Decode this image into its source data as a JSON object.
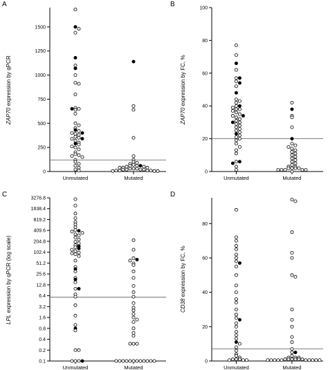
{
  "chart_data": [
    {
      "panel": "A",
      "type": "scatter",
      "ylabel_gene": "ZAP70",
      "ylabel_rest": " expression by qPCR",
      "categories": [
        "Unmutated",
        "Mutated"
      ],
      "ylim": [
        0,
        1700
      ],
      "yticks": [
        "0",
        "250",
        "500",
        "750",
        "1000",
        "1250",
        "1500"
      ],
      "ytick_values": [
        0,
        250,
        500,
        750,
        1000,
        1250,
        1500
      ],
      "cutoff": 120,
      "series": [
        {
          "category": "Unmutated",
          "open": [
            1680,
            1480,
            1440,
            1100,
            1000,
            920,
            910,
            800,
            660,
            650,
            640,
            600,
            500,
            480,
            450,
            420,
            400,
            390,
            380,
            360,
            350,
            340,
            320,
            300,
            280,
            260,
            250,
            230,
            200,
            180,
            170,
            160,
            150,
            120,
            100,
            80,
            60,
            40,
            20,
            10
          ],
          "filled": [
            1500,
            1180,
            1070,
            650,
            430,
            400,
            340,
            290
          ]
        },
        {
          "category": "Mutated",
          "open": [
            680,
            640,
            350,
            160,
            120,
            100,
            90,
            80,
            70,
            60,
            60,
            50,
            50,
            40,
            40,
            40,
            30,
            30,
            30,
            20,
            20,
            20,
            20,
            10,
            10,
            10,
            10,
            5,
            5,
            5
          ],
          "filled": [
            1140,
            60
          ]
        }
      ]
    },
    {
      "panel": "B",
      "type": "scatter",
      "ylabel_gene": "ZAP70",
      "ylabel_rest": " expression by FC, %",
      "categories": [
        "Unmutated",
        "Mutated"
      ],
      "ylim": [
        0,
        100
      ],
      "yticks": [
        "0",
        "20",
        "40",
        "60",
        "80",
        "100"
      ],
      "ytick_values": [
        0,
        20,
        40,
        60,
        80,
        100
      ],
      "cutoff": 20,
      "series": [
        {
          "category": "Unmutated",
          "open": [
            77,
            71,
            62,
            57,
            55,
            52,
            44,
            43,
            42,
            40,
            39,
            38,
            38,
            37,
            36,
            35,
            34,
            33,
            32,
            31,
            30,
            29,
            28,
            27,
            26,
            25,
            24,
            22,
            21,
            20,
            19,
            17,
            15,
            13,
            11,
            6,
            3,
            1
          ],
          "filled": [
            66,
            57,
            54,
            48,
            40,
            34,
            30,
            23,
            6,
            5
          ]
        },
        {
          "category": "Mutated",
          "open": [
            42,
            34,
            33,
            27,
            17,
            16,
            15,
            14,
            13,
            12,
            11,
            10,
            9,
            8,
            7,
            6,
            5,
            4,
            3,
            3,
            2,
            2,
            2,
            2,
            1,
            1,
            1,
            1,
            1,
            0
          ],
          "filled": [
            38,
            20
          ]
        }
      ]
    },
    {
      "panel": "C",
      "type": "scatter",
      "ylabel_gene": "LPL",
      "ylabel_rest": " expression by qPCR (log scale)",
      "yscale": "log2",
      "categories": [
        "Unmutated",
        "Mutated"
      ],
      "ylim": [
        0.1,
        3276.8
      ],
      "yticks": [
        "0.1",
        "0.2",
        "0.4",
        "0.8",
        "1.6",
        "3.2",
        "6.4",
        "12.8",
        "25.6",
        "51.2",
        "102.4",
        "204.8",
        "409.6",
        "819.2",
        "1638.4",
        "3276.8"
      ],
      "ytick_values": [
        0.1,
        0.2,
        0.4,
        0.8,
        1.6,
        3.2,
        6.4,
        12.8,
        25.6,
        51.2,
        102.4,
        204.8,
        409.6,
        819.2,
        1638.4,
        3276.8
      ],
      "cutoff": 5.8,
      "series": [
        {
          "category": "Unmutated",
          "open": [
            3000,
            2000,
            1200,
            900,
            700,
            600,
            500,
            420,
            380,
            350,
            320,
            300,
            260,
            230,
            200,
            180,
            160,
            140,
            120,
            110,
            100,
            95,
            90,
            80,
            60,
            40,
            30,
            20,
            15,
            10,
            7,
            6,
            3.5,
            1.8,
            1.0,
            0.7,
            0.2,
            0.2,
            0.1,
            0.1,
            0.1
          ],
          "filled": [
            400,
            150,
            130,
            35,
            18,
            10,
            0.8,
            0.1
          ]
        },
        {
          "category": "Mutated",
          "open": [
            220,
            120,
            70,
            60,
            50,
            45,
            30,
            20,
            12,
            8,
            6,
            4,
            3,
            2.5,
            2,
            1.6,
            1.4,
            1.2,
            0.8,
            0.6,
            0.5,
            0.3,
            0.3,
            0.3,
            0.1,
            0.1,
            0.1,
            0.1,
            0.1,
            0.1,
            0.1,
            0.1,
            0.1,
            0.1,
            0.1,
            0.1
          ],
          "filled": [
            64
          ]
        }
      ]
    },
    {
      "panel": "D",
      "type": "scatter",
      "ylabel_gene": "CD38",
      "ylabel_rest": " expression by FC, %",
      "categories": [
        "Unmutated",
        "Mutated"
      ],
      "ylim": [
        0,
        95
      ],
      "yticks": [
        "0",
        "20",
        "40",
        "60",
        "80"
      ],
      "ytick_values": [
        0,
        20,
        40,
        60,
        80
      ],
      "cutoff": 7,
      "series": [
        {
          "category": "Unmutated",
          "open": [
            88,
            72,
            70,
            67,
            65,
            62,
            60,
            58,
            55,
            50,
            44,
            40,
            36,
            34,
            30,
            27,
            25,
            22,
            20,
            17,
            15,
            13,
            10,
            8,
            6,
            4,
            3,
            2,
            1,
            1,
            1,
            0.5,
            0.5,
            0.5
          ],
          "filled": [
            57,
            24,
            11
          ]
        },
        {
          "category": "Mutated",
          "open": [
            94,
            93,
            75,
            63,
            60,
            50,
            49,
            30,
            24,
            20,
            14,
            11,
            7,
            5,
            3,
            2,
            2,
            2,
            1,
            1,
            1,
            1,
            1,
            1,
            0.5,
            0.5,
            0.5,
            0.5,
            0.5,
            0.5,
            0.5,
            0.5,
            0.5,
            0.5
          ],
          "filled": [
            5
          ]
        }
      ]
    }
  ]
}
